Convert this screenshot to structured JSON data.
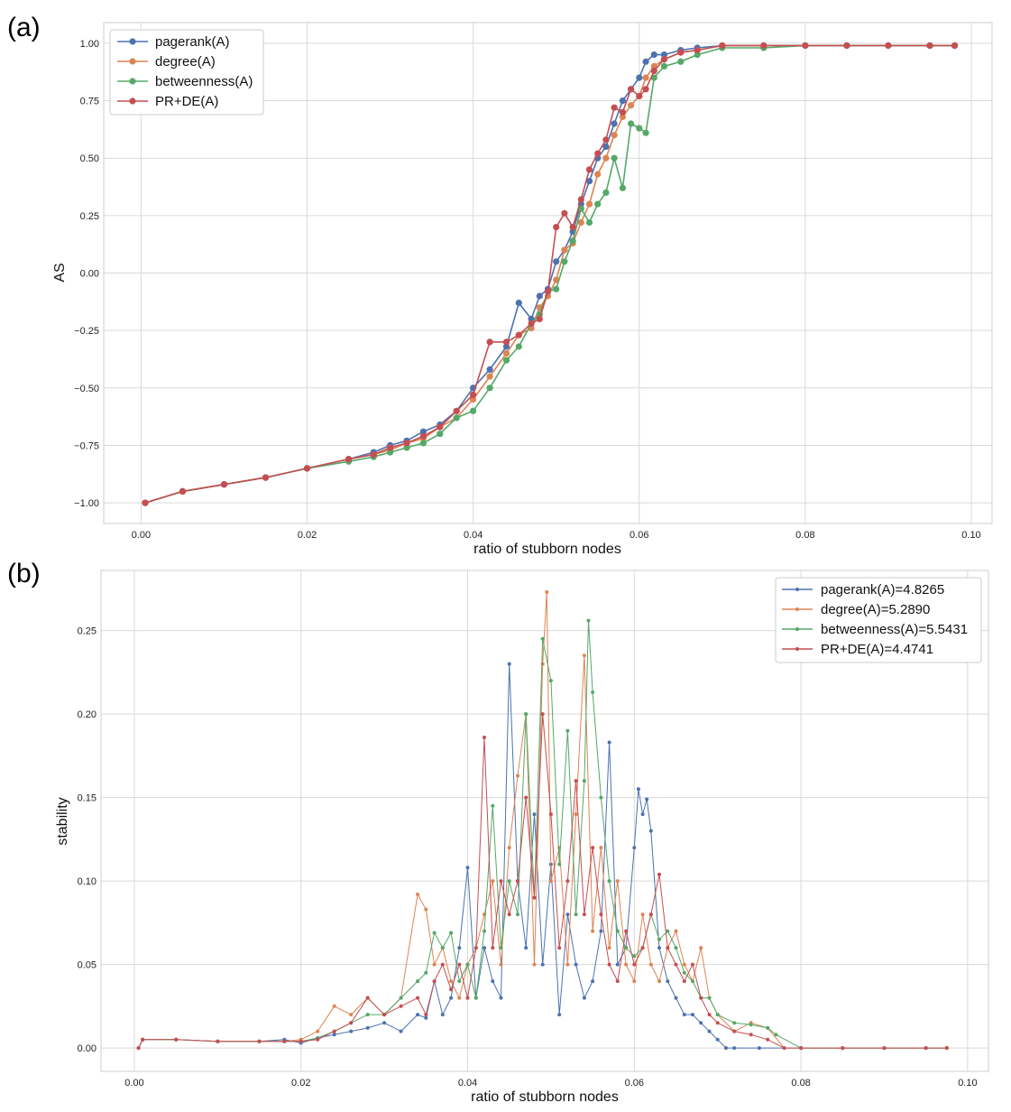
{
  "chart_data": [
    {
      "panel_label": "(a)",
      "type": "line",
      "title": "",
      "xlabel": "ratio of stubborn nodes",
      "ylabel": "AS",
      "xlim": [
        -0.0045,
        0.1025
      ],
      "ylim": [
        -1.09,
        1.09
      ],
      "xticks": [
        0.0,
        0.02,
        0.04,
        0.06,
        0.08,
        0.1
      ],
      "xtick_labels": [
        "0.00",
        "0.02",
        "0.04",
        "0.06",
        "0.08",
        "0.10"
      ],
      "yticks": [
        -1.0,
        -0.75,
        -0.5,
        -0.25,
        0.0,
        0.25,
        0.5,
        0.75,
        1.0
      ],
      "ytick_labels": [
        "−1.00",
        "−0.75",
        "−0.50",
        "−0.25",
        "0.00",
        "0.25",
        "0.50",
        "0.75",
        "1.00"
      ],
      "grid": true,
      "legend_position": "top-left",
      "marker_size": "large",
      "series": [
        {
          "name": "pagerank(A)",
          "color": "#4c72b0",
          "x": [
            0.0005,
            0.005,
            0.01,
            0.015,
            0.02,
            0.025,
            0.028,
            0.03,
            0.032,
            0.034,
            0.036,
            0.038,
            0.04,
            0.042,
            0.044,
            0.0455,
            0.047,
            0.048,
            0.049,
            0.05,
            0.051,
            0.052,
            0.053,
            0.054,
            0.055,
            0.056,
            0.057,
            0.058,
            0.059,
            0.06,
            0.0608,
            0.0618,
            0.063,
            0.065,
            0.067,
            0.07,
            0.075,
            0.08,
            0.085,
            0.09,
            0.095,
            0.098
          ],
          "y": [
            -1.0,
            -0.95,
            -0.92,
            -0.89,
            -0.85,
            -0.81,
            -0.78,
            -0.75,
            -0.73,
            -0.69,
            -0.66,
            -0.6,
            -0.5,
            -0.42,
            -0.32,
            -0.13,
            -0.2,
            -0.1,
            -0.07,
            0.05,
            0.1,
            0.18,
            0.3,
            0.4,
            0.5,
            0.55,
            0.65,
            0.75,
            0.8,
            0.85,
            0.92,
            0.95,
            0.95,
            0.97,
            0.98,
            0.99,
            0.99,
            0.99,
            0.99,
            0.99,
            0.99,
            0.99
          ]
        },
        {
          "name": "degree(A)",
          "color": "#dd8452",
          "x": [
            0.0005,
            0.005,
            0.01,
            0.015,
            0.02,
            0.025,
            0.028,
            0.03,
            0.032,
            0.034,
            0.036,
            0.038,
            0.04,
            0.042,
            0.044,
            0.0455,
            0.047,
            0.048,
            0.049,
            0.05,
            0.051,
            0.052,
            0.053,
            0.054,
            0.055,
            0.056,
            0.057,
            0.058,
            0.059,
            0.06,
            0.0608,
            0.0618,
            0.063,
            0.065,
            0.067,
            0.07,
            0.075,
            0.08,
            0.085,
            0.09,
            0.095,
            0.098
          ],
          "y": [
            -1.0,
            -0.95,
            -0.92,
            -0.89,
            -0.85,
            -0.81,
            -0.79,
            -0.77,
            -0.74,
            -0.72,
            -0.67,
            -0.63,
            -0.55,
            -0.45,
            -0.35,
            -0.27,
            -0.24,
            -0.15,
            -0.1,
            -0.03,
            0.1,
            0.13,
            0.22,
            0.3,
            0.43,
            0.5,
            0.6,
            0.68,
            0.73,
            0.77,
            0.85,
            0.9,
            0.93,
            0.96,
            0.97,
            0.99,
            0.99,
            0.99,
            0.99,
            0.99,
            0.99,
            0.99
          ]
        },
        {
          "name": "betweenness(A)",
          "color": "#55a868",
          "x": [
            0.0005,
            0.005,
            0.01,
            0.015,
            0.02,
            0.025,
            0.028,
            0.03,
            0.032,
            0.034,
            0.036,
            0.038,
            0.04,
            0.042,
            0.044,
            0.0455,
            0.047,
            0.048,
            0.049,
            0.05,
            0.051,
            0.052,
            0.053,
            0.054,
            0.055,
            0.056,
            0.057,
            0.058,
            0.059,
            0.06,
            0.0608,
            0.0618,
            0.063,
            0.065,
            0.067,
            0.07,
            0.075,
            0.08,
            0.085,
            0.09,
            0.095,
            0.098
          ],
          "y": [
            -1.0,
            -0.95,
            -0.92,
            -0.89,
            -0.85,
            -0.82,
            -0.8,
            -0.78,
            -0.76,
            -0.74,
            -0.7,
            -0.63,
            -0.6,
            -0.5,
            -0.38,
            -0.32,
            -0.22,
            -0.18,
            -0.08,
            -0.07,
            0.05,
            0.14,
            0.28,
            0.22,
            0.3,
            0.35,
            0.5,
            0.37,
            0.65,
            0.63,
            0.61,
            0.85,
            0.9,
            0.92,
            0.95,
            0.98,
            0.98,
            0.99,
            0.99,
            0.99,
            0.99,
            0.99
          ]
        },
        {
          "name": "PR+DE(A)",
          "color": "#c44e52",
          "x": [
            0.0005,
            0.005,
            0.01,
            0.015,
            0.02,
            0.025,
            0.028,
            0.03,
            0.032,
            0.034,
            0.036,
            0.038,
            0.04,
            0.042,
            0.044,
            0.0455,
            0.047,
            0.048,
            0.049,
            0.05,
            0.051,
            0.052,
            0.053,
            0.054,
            0.055,
            0.056,
            0.057,
            0.058,
            0.059,
            0.06,
            0.0608,
            0.0618,
            0.063,
            0.065,
            0.067,
            0.07,
            0.075,
            0.08,
            0.085,
            0.09,
            0.095,
            0.098
          ],
          "y": [
            -1.0,
            -0.95,
            -0.92,
            -0.89,
            -0.85,
            -0.81,
            -0.79,
            -0.76,
            -0.74,
            -0.71,
            -0.67,
            -0.6,
            -0.53,
            -0.3,
            -0.3,
            -0.27,
            -0.22,
            -0.2,
            -0.08,
            0.2,
            0.26,
            0.2,
            0.32,
            0.45,
            0.52,
            0.58,
            0.72,
            0.7,
            0.8,
            0.77,
            0.8,
            0.88,
            0.93,
            0.96,
            0.97,
            0.99,
            0.99,
            0.99,
            0.99,
            0.99,
            0.99,
            0.99
          ]
        }
      ]
    },
    {
      "panel_label": "(b)",
      "type": "line",
      "title": "",
      "xlabel": "ratio of stubborn nodes",
      "ylabel": "stability",
      "xlim": [
        -0.004,
        0.1025
      ],
      "ylim": [
        -0.014,
        0.286
      ],
      "xticks": [
        0.0,
        0.02,
        0.04,
        0.06,
        0.08,
        0.1
      ],
      "xtick_labels": [
        "0.00",
        "0.02",
        "0.04",
        "0.06",
        "0.08",
        "0.10"
      ],
      "yticks": [
        0.0,
        0.05,
        0.1,
        0.15,
        0.2,
        0.25
      ],
      "ytick_labels": [
        "0.00",
        "0.05",
        "0.10",
        "0.15",
        "0.20",
        "0.25"
      ],
      "grid": true,
      "legend_position": "top-right",
      "marker_size": "small",
      "series": [
        {
          "name": "pagerank(A)=4.8265",
          "color": "#4c72b0",
          "x": [
            0.0005,
            0.001,
            0.005,
            0.01,
            0.015,
            0.018,
            0.02,
            0.022,
            0.024,
            0.026,
            0.028,
            0.03,
            0.032,
            0.034,
            0.035,
            0.036,
            0.037,
            0.038,
            0.039,
            0.04,
            0.041,
            0.042,
            0.043,
            0.044,
            0.045,
            0.046,
            0.047,
            0.048,
            0.049,
            0.05,
            0.051,
            0.052,
            0.053,
            0.054,
            0.055,
            0.056,
            0.057,
            0.058,
            0.059,
            0.06,
            0.0605,
            0.061,
            0.0615,
            0.062,
            0.063,
            0.064,
            0.065,
            0.066,
            0.067,
            0.068,
            0.069,
            0.07,
            0.071,
            0.072,
            0.075,
            0.08,
            0.085,
            0.09,
            0.095,
            0.0975
          ],
          "y": [
            0.0,
            0.005,
            0.005,
            0.004,
            0.004,
            0.005,
            0.003,
            0.006,
            0.008,
            0.01,
            0.012,
            0.015,
            0.01,
            0.02,
            0.018,
            0.04,
            0.02,
            0.03,
            0.06,
            0.108,
            0.03,
            0.06,
            0.04,
            0.03,
            0.23,
            0.1,
            0.06,
            0.14,
            0.05,
            0.11,
            0.02,
            0.08,
            0.05,
            0.03,
            0.04,
            0.07,
            0.183,
            0.05,
            0.06,
            0.12,
            0.155,
            0.14,
            0.149,
            0.13,
            0.06,
            0.04,
            0.03,
            0.02,
            0.02,
            0.015,
            0.01,
            0.005,
            0.0,
            0.0,
            0.0,
            0.0,
            0.0,
            0.0,
            0.0,
            0.0
          ]
        },
        {
          "name": "degree(A)=5.2890",
          "color": "#dd8452",
          "x": [
            0.0005,
            0.001,
            0.005,
            0.01,
            0.015,
            0.018,
            0.02,
            0.022,
            0.024,
            0.026,
            0.028,
            0.03,
            0.032,
            0.034,
            0.035,
            0.036,
            0.037,
            0.038,
            0.039,
            0.04,
            0.041,
            0.042,
            0.043,
            0.044,
            0.045,
            0.046,
            0.047,
            0.048,
            0.049,
            0.0495,
            0.05,
            0.051,
            0.052,
            0.053,
            0.054,
            0.055,
            0.056,
            0.057,
            0.058,
            0.059,
            0.06,
            0.061,
            0.062,
            0.063,
            0.064,
            0.065,
            0.066,
            0.067,
            0.068,
            0.069,
            0.07,
            0.072,
            0.074,
            0.076,
            0.078,
            0.08,
            0.085,
            0.09,
            0.095,
            0.0975
          ],
          "y": [
            0.0,
            0.005,
            0.005,
            0.004,
            0.004,
            0.004,
            0.005,
            0.01,
            0.025,
            0.02,
            0.03,
            0.02,
            0.03,
            0.092,
            0.083,
            0.05,
            0.06,
            0.04,
            0.03,
            0.05,
            0.06,
            0.08,
            0.1,
            0.05,
            0.12,
            0.163,
            0.2,
            0.05,
            0.23,
            0.273,
            0.1,
            0.12,
            0.05,
            0.14,
            0.235,
            0.07,
            0.12,
            0.06,
            0.1,
            0.05,
            0.04,
            0.08,
            0.05,
            0.04,
            0.06,
            0.07,
            0.05,
            0.04,
            0.06,
            0.03,
            0.02,
            0.01,
            0.015,
            0.012,
            0.0,
            0.0,
            0.0,
            0.0,
            0.0,
            0.0
          ]
        },
        {
          "name": "betweenness(A)=5.5431",
          "color": "#55a868",
          "x": [
            0.0005,
            0.001,
            0.005,
            0.01,
            0.015,
            0.018,
            0.02,
            0.022,
            0.024,
            0.026,
            0.028,
            0.03,
            0.032,
            0.034,
            0.035,
            0.036,
            0.037,
            0.038,
            0.039,
            0.04,
            0.041,
            0.042,
            0.043,
            0.044,
            0.045,
            0.046,
            0.047,
            0.048,
            0.049,
            0.05,
            0.051,
            0.052,
            0.053,
            0.054,
            0.0545,
            0.055,
            0.056,
            0.057,
            0.058,
            0.059,
            0.06,
            0.061,
            0.062,
            0.063,
            0.064,
            0.065,
            0.066,
            0.067,
            0.068,
            0.069,
            0.07,
            0.072,
            0.074,
            0.076,
            0.077,
            0.08,
            0.085,
            0.09,
            0.095,
            0.0975
          ],
          "y": [
            0.0,
            0.005,
            0.005,
            0.004,
            0.004,
            0.004,
            0.004,
            0.006,
            0.01,
            0.015,
            0.02,
            0.02,
            0.03,
            0.04,
            0.045,
            0.069,
            0.06,
            0.069,
            0.04,
            0.05,
            0.03,
            0.07,
            0.145,
            0.06,
            0.1,
            0.08,
            0.2,
            0.09,
            0.245,
            0.22,
            0.11,
            0.19,
            0.08,
            0.16,
            0.256,
            0.213,
            0.15,
            0.1,
            0.07,
            0.06,
            0.055,
            0.06,
            0.08,
            0.065,
            0.07,
            0.06,
            0.045,
            0.04,
            0.03,
            0.03,
            0.02,
            0.015,
            0.014,
            0.012,
            0.008,
            0.0,
            0.0,
            0.0,
            0.0,
            0.0
          ]
        },
        {
          "name": "PR+DE(A)=4.4741",
          "color": "#c44e52",
          "x": [
            0.0005,
            0.001,
            0.005,
            0.01,
            0.015,
            0.018,
            0.02,
            0.022,
            0.024,
            0.026,
            0.028,
            0.03,
            0.032,
            0.034,
            0.035,
            0.036,
            0.037,
            0.038,
            0.039,
            0.04,
            0.041,
            0.042,
            0.043,
            0.044,
            0.045,
            0.046,
            0.047,
            0.048,
            0.049,
            0.05,
            0.051,
            0.052,
            0.053,
            0.054,
            0.055,
            0.056,
            0.057,
            0.058,
            0.059,
            0.06,
            0.061,
            0.062,
            0.063,
            0.064,
            0.065,
            0.066,
            0.067,
            0.068,
            0.069,
            0.07,
            0.072,
            0.074,
            0.076,
            0.078,
            0.08,
            0.085,
            0.09,
            0.095,
            0.0975
          ],
          "y": [
            0.0,
            0.005,
            0.005,
            0.004,
            0.004,
            0.004,
            0.004,
            0.005,
            0.01,
            0.015,
            0.03,
            0.02,
            0.025,
            0.03,
            0.02,
            0.04,
            0.05,
            0.035,
            0.05,
            0.03,
            0.06,
            0.186,
            0.06,
            0.1,
            0.08,
            0.1,
            0.15,
            0.09,
            0.2,
            0.14,
            0.06,
            0.1,
            0.16,
            0.08,
            0.12,
            0.08,
            0.05,
            0.04,
            0.07,
            0.05,
            0.06,
            0.08,
            0.104,
            0.06,
            0.05,
            0.04,
            0.05,
            0.03,
            0.02,
            0.015,
            0.01,
            0.008,
            0.005,
            0.0,
            0.0,
            0.0,
            0.0,
            0.0,
            0.0
          ]
        }
      ]
    }
  ]
}
